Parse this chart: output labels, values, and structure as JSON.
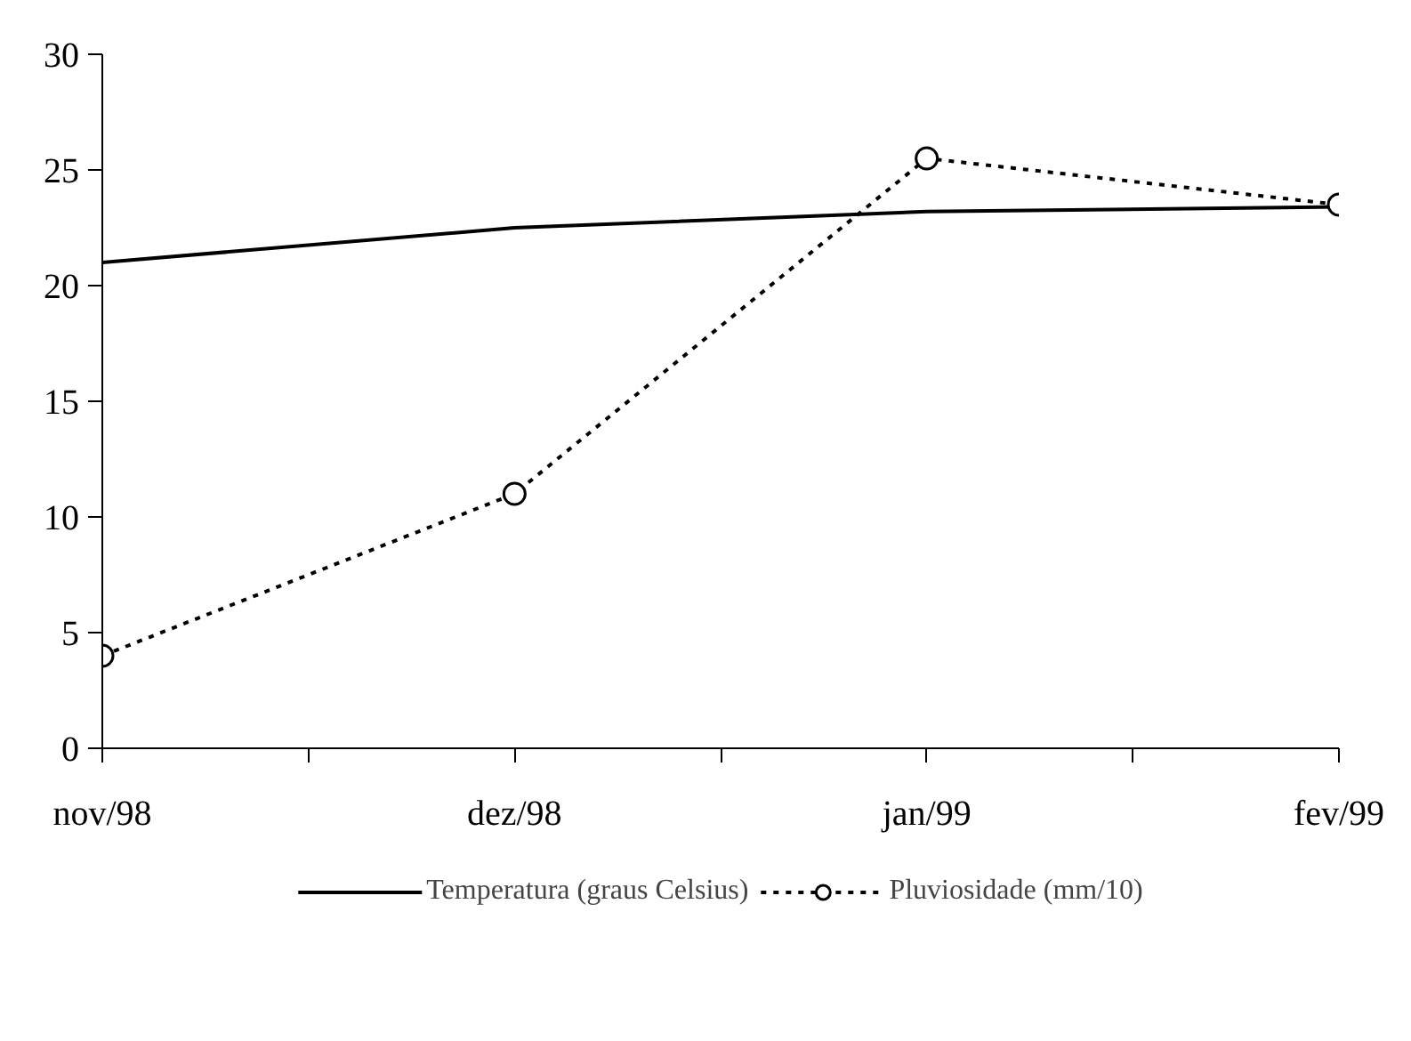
{
  "chart_data": {
    "type": "line",
    "categories": [
      "nov/98",
      "dez/98",
      "jan/99",
      "fev/99"
    ],
    "series": [
      {
        "name": "Temperatura (graus Celsius)",
        "color": "#000000",
        "values": [
          21,
          22.5,
          23.2,
          23.4
        ],
        "marker": "none",
        "line_style": "solid"
      },
      {
        "name": "Pluviosidade (mm/10)",
        "color": "#000000",
        "values": [
          4,
          11,
          25.5,
          23.5
        ],
        "marker": "circle",
        "line_style": "dotted"
      }
    ],
    "ylim": [
      0,
      30
    ],
    "yticks": [
      0,
      5,
      10,
      15,
      20,
      25,
      30
    ],
    "grid": false,
    "legend": "bottom"
  }
}
